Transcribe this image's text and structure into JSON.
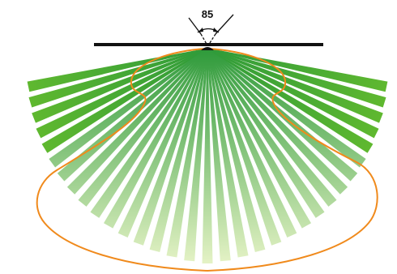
{
  "diagram": {
    "angle_label": "85",
    "colors": {
      "mounting_bar": "#111111",
      "emitter": "#111111",
      "beam_strong": "#2e9a3a",
      "beam_fade": "#e8f4c8",
      "beam_side": "#5fb82f",
      "distribution_outline": "#f08a1c",
      "angle_marker": "#111111",
      "background": "#ffffff"
    },
    "beam_count": 33,
    "included_angle_deg": 85
  }
}
